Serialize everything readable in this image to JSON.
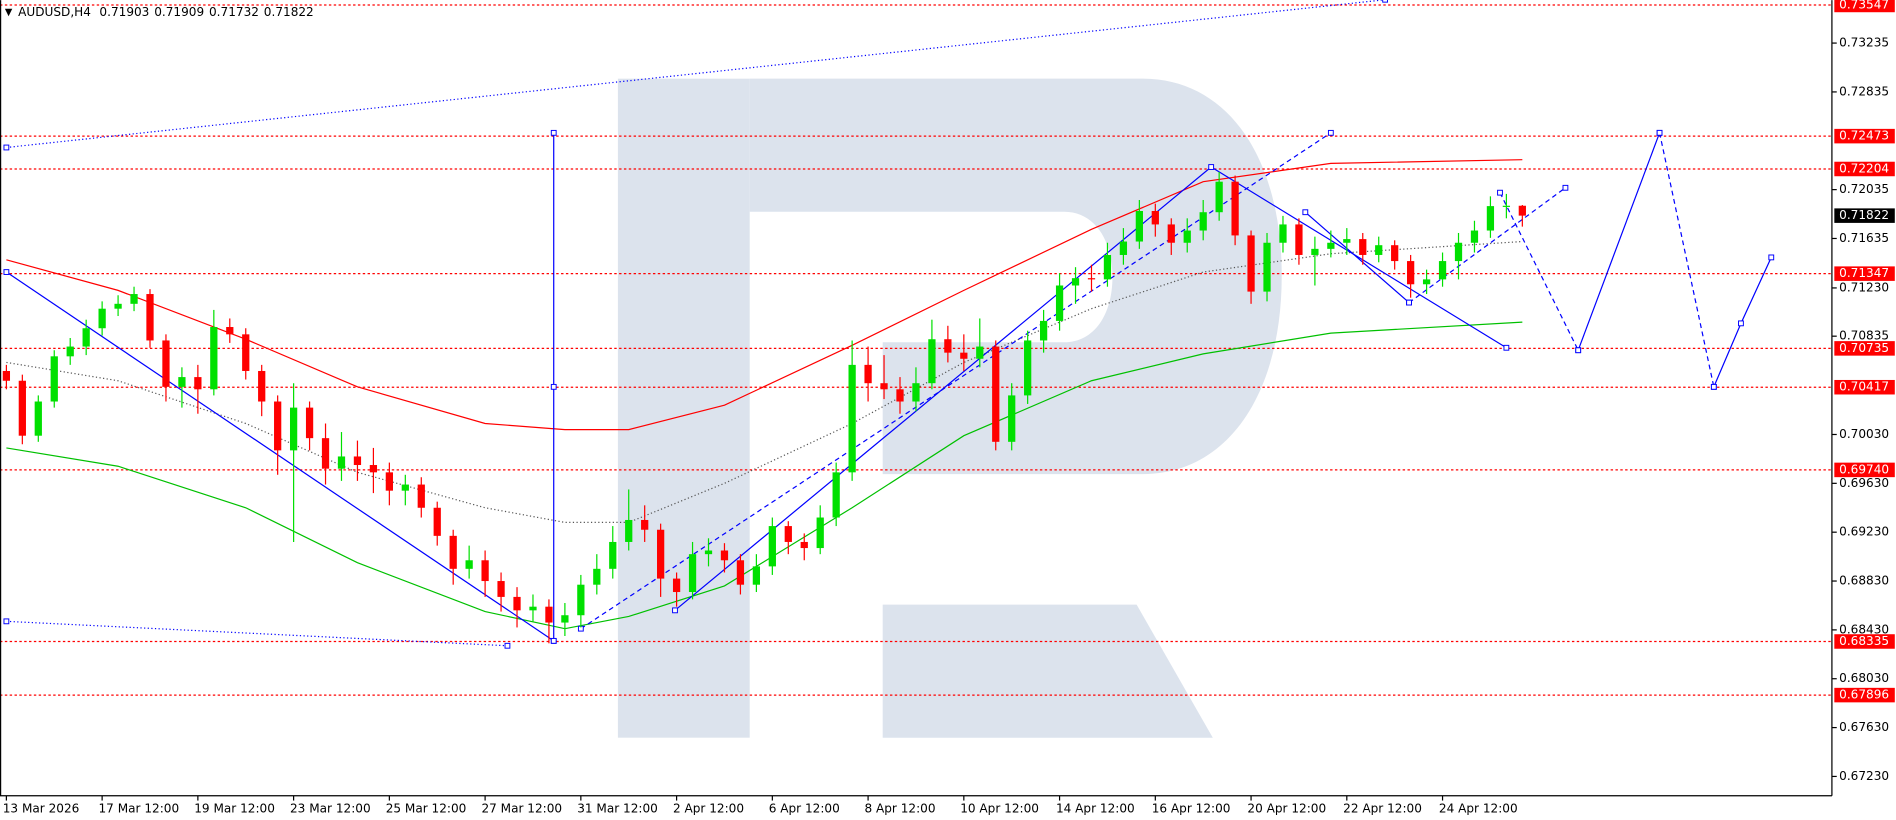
{
  "header": {
    "symbol": "AUDUSD,H4"
  },
  "chart_data": {
    "type": "candlestick",
    "colors": {
      "up": "#00e000",
      "down": "#ff0000",
      "level": "#ff0000",
      "drawing": "#0000ff",
      "current": "#000000"
    },
    "xlim": [
      -0.4,
      114.4
    ],
    "ylim": [
      0.67072,
      0.73587
    ],
    "xticks": [
      {
        "value": 0,
        "label": "13 Mar 2026"
      },
      {
        "value": 6,
        "label": "17 Mar 12:00"
      },
      {
        "value": 12,
        "label": "19 Mar 12:00"
      },
      {
        "value": 18,
        "label": "23 Mar 12:00"
      },
      {
        "value": 24,
        "label": "25 Mar 12:00"
      },
      {
        "value": 30,
        "label": "27 Mar 12:00"
      },
      {
        "value": 36,
        "label": "31 Mar 12:00"
      },
      {
        "value": 42,
        "label": "2 Apr 12:00"
      },
      {
        "value": 48,
        "label": "6 Apr 12:00"
      },
      {
        "value": 54,
        "label": "8 Apr 12:00"
      },
      {
        "value": 60,
        "label": "10 Apr 12:00"
      },
      {
        "value": 66,
        "label": "14 Apr 12:00"
      },
      {
        "value": 72,
        "label": "16 Apr 12:00"
      },
      {
        "value": 78,
        "label": "20 Apr 12:00"
      },
      {
        "value": 84,
        "label": "22 Apr 12:00"
      },
      {
        "value": 90,
        "label": "24 Apr 12:00"
      }
    ],
    "yticks": [
      0.73235,
      0.72835,
      0.72035,
      0.71635,
      {
        "value": 0.7123,
        "label": "0.71230"
      },
      0.70835,
      {
        "value": 0.7003,
        "label": "0.70030"
      },
      {
        "value": 0.6963,
        "label": "0.69630"
      },
      {
        "value": 0.6923,
        "label": "0.69230"
      },
      {
        "value": 0.6883,
        "label": "0.68830"
      },
      {
        "value": 0.6843,
        "label": "0.68430"
      },
      {
        "value": 0.6803,
        "label": "0.68030"
      },
      {
        "value": 0.6763,
        "label": "0.67630"
      },
      {
        "value": 0.6723,
        "label": "0.67230"
      }
    ],
    "levels": [
      0.73547,
      0.72473,
      0.72204,
      0.71347,
      0.70735,
      0.70417,
      {
        "value": 0.6974,
        "label": "0.69740"
      },
      0.68335,
      0.67896
    ],
    "candles": [
      [
        0.7055,
        0.706,
        0.704,
        0.7047
      ],
      [
        0.7047,
        0.7052,
        0.6995,
        0.7002
      ],
      [
        0.7002,
        0.7035,
        0.6997,
        0.703
      ],
      [
        0.703,
        0.7072,
        0.7025,
        0.7067
      ],
      [
        0.7067,
        0.7082,
        0.706,
        0.7075
      ],
      [
        0.7075,
        0.7097,
        0.7068,
        0.709
      ],
      [
        0.709,
        0.7112,
        0.7084,
        0.7106
      ],
      [
        0.7106,
        0.7117,
        0.71,
        0.711
      ],
      [
        0.711,
        0.7124,
        0.7104,
        0.7118
      ],
      [
        0.7118,
        0.7122,
        0.7074,
        0.708
      ],
      [
        0.708,
        0.7085,
        0.703,
        0.7042
      ],
      [
        0.7042,
        0.7058,
        0.7025,
        0.705
      ],
      [
        0.705,
        0.706,
        0.702,
        0.704
      ],
      [
        0.704,
        0.7105,
        0.7035,
        0.7091
      ],
      [
        0.7091,
        0.7098,
        0.7078,
        0.7085
      ],
      [
        0.7085,
        0.709,
        0.7048,
        0.7055
      ],
      [
        0.7055,
        0.706,
        0.7018,
        0.703
      ],
      [
        0.703,
        0.7035,
        0.697,
        0.699
      ],
      [
        0.699,
        0.7045,
        0.6915,
        0.7025
      ],
      [
        0.7025,
        0.703,
        0.699,
        0.7
      ],
      [
        0.7,
        0.7012,
        0.6962,
        0.6975
      ],
      [
        0.6975,
        0.7005,
        0.6965,
        0.6985
      ],
      [
        0.6985,
        0.6998,
        0.6965,
        0.6978
      ],
      [
        0.6978,
        0.6992,
        0.6955,
        0.6972
      ],
      [
        0.6972,
        0.698,
        0.6945,
        0.6957
      ],
      [
        0.6957,
        0.697,
        0.6945,
        0.6962
      ],
      [
        0.6962,
        0.6968,
        0.6935,
        0.6943
      ],
      [
        0.6943,
        0.6948,
        0.6912,
        0.692
      ],
      [
        0.692,
        0.6925,
        0.688,
        0.6893
      ],
      [
        0.6893,
        0.6912,
        0.6885,
        0.69
      ],
      [
        0.69,
        0.6908,
        0.687,
        0.6883
      ],
      [
        0.6883,
        0.689,
        0.6858,
        0.687
      ],
      [
        0.687,
        0.6878,
        0.6845,
        0.6859
      ],
      [
        0.6859,
        0.6872,
        0.685,
        0.6862
      ],
      [
        0.6862,
        0.6868,
        0.6832,
        0.6849
      ],
      [
        0.6849,
        0.6865,
        0.6838,
        0.6855
      ],
      [
        0.6855,
        0.6888,
        0.6845,
        0.688
      ],
      [
        0.688,
        0.6905,
        0.6872,
        0.6893
      ],
      [
        0.6893,
        0.6928,
        0.6885,
        0.6915
      ],
      [
        0.6915,
        0.6958,
        0.6908,
        0.6933
      ],
      [
        0.6933,
        0.6945,
        0.6915,
        0.6925
      ],
      [
        0.6925,
        0.693,
        0.687,
        0.6885
      ],
      [
        0.6885,
        0.689,
        0.6862,
        0.6874
      ],
      [
        0.6874,
        0.6915,
        0.6868,
        0.6905
      ],
      [
        0.6905,
        0.6918,
        0.6895,
        0.6908
      ],
      [
        0.6908,
        0.6914,
        0.689,
        0.69
      ],
      [
        0.69,
        0.6905,
        0.6872,
        0.688
      ],
      [
        0.688,
        0.6905,
        0.6874,
        0.6895
      ],
      [
        0.6895,
        0.6935,
        0.6888,
        0.6928
      ],
      [
        0.6928,
        0.6932,
        0.6905,
        0.6915
      ],
      [
        0.6915,
        0.6922,
        0.69,
        0.691
      ],
      [
        0.691,
        0.6945,
        0.6905,
        0.6935
      ],
      [
        0.6935,
        0.698,
        0.6928,
        0.6972
      ],
      [
        0.6972,
        0.708,
        0.6965,
        0.706
      ],
      [
        0.706,
        0.7075,
        0.703,
        0.7045
      ],
      [
        0.7045,
        0.7068,
        0.7032,
        0.704
      ],
      [
        0.704,
        0.705,
        0.702,
        0.703
      ],
      [
        0.703,
        0.7058,
        0.7022,
        0.7045
      ],
      [
        0.7045,
        0.7097,
        0.704,
        0.7081
      ],
      [
        0.7081,
        0.7092,
        0.7062,
        0.707
      ],
      [
        0.707,
        0.7085,
        0.7055,
        0.7065
      ],
      [
        0.7065,
        0.7098,
        0.7058,
        0.7075
      ],
      [
        0.7075,
        0.708,
        0.699,
        0.6997
      ],
      [
        0.6997,
        0.7045,
        0.699,
        0.7035
      ],
      [
        0.7035,
        0.7088,
        0.7028,
        0.708
      ],
      [
        0.708,
        0.7105,
        0.707,
        0.7096
      ],
      [
        0.7096,
        0.7135,
        0.7088,
        0.7125
      ],
      [
        0.7125,
        0.714,
        0.711,
        0.7131
      ],
      [
        0.7131,
        0.7142,
        0.712,
        0.713
      ],
      [
        0.713,
        0.716,
        0.7124,
        0.715
      ],
      [
        0.715,
        0.7172,
        0.7142,
        0.7161
      ],
      [
        0.7161,
        0.7195,
        0.7155,
        0.7186
      ],
      [
        0.7186,
        0.7192,
        0.7165,
        0.7175
      ],
      [
        0.7175,
        0.718,
        0.715,
        0.716
      ],
      [
        0.716,
        0.718,
        0.7152,
        0.717
      ],
      [
        0.717,
        0.7195,
        0.7162,
        0.7185
      ],
      [
        0.7185,
        0.7218,
        0.7178,
        0.721
      ],
      [
        0.721,
        0.7215,
        0.7158,
        0.7166
      ],
      [
        0.7166,
        0.717,
        0.711,
        0.712
      ],
      [
        0.712,
        0.7168,
        0.7112,
        0.716
      ],
      [
        0.716,
        0.7182,
        0.7152,
        0.7175
      ],
      [
        0.7175,
        0.718,
        0.7142,
        0.715
      ],
      [
        0.715,
        0.7165,
        0.7125,
        0.7155
      ],
      [
        0.7155,
        0.717,
        0.7148,
        0.716
      ],
      [
        0.716,
        0.7172,
        0.715,
        0.7163
      ],
      [
        0.7163,
        0.7168,
        0.7142,
        0.715
      ],
      [
        0.715,
        0.7165,
        0.7144,
        0.7158
      ],
      [
        0.7158,
        0.7162,
        0.7138,
        0.7145
      ],
      [
        0.7145,
        0.715,
        0.7115,
        0.7126
      ],
      [
        0.7126,
        0.7138,
        0.7118,
        0.713
      ],
      [
        0.713,
        0.7152,
        0.7124,
        0.7145
      ],
      [
        0.7145,
        0.7168,
        0.713,
        0.716
      ],
      [
        0.716,
        0.7178,
        0.7152,
        0.717
      ],
      [
        0.717,
        0.7198,
        0.7164,
        0.719
      ],
      [
        0.719,
        0.72,
        0.718,
        0.71903
      ],
      [
        0.71903,
        0.71909,
        0.71732,
        0.71822
      ]
    ],
    "moving_averages": [
      {
        "color": "#ff0000",
        "style": "solid",
        "x": [
          0,
          7,
          15,
          22,
          30,
          35,
          39,
          45,
          53,
          60,
          68,
          75,
          83,
          95
        ],
        "values": [
          0.7146,
          0.7121,
          0.7081,
          0.7042,
          0.7012,
          0.7007,
          0.7007,
          0.7027,
          0.7076,
          0.7121,
          0.7171,
          0.721,
          0.7225,
          0.7228
        ]
      },
      {
        "color": "#00c000",
        "style": "solid",
        "x": [
          0,
          7,
          15,
          22,
          30,
          35,
          39,
          45,
          53,
          60,
          68,
          75,
          83,
          95
        ],
        "values": [
          0.6992,
          0.6977,
          0.6943,
          0.6898,
          0.6858,
          0.6844,
          0.6854,
          0.6879,
          0.6943,
          0.7002,
          0.7047,
          0.7069,
          0.7086,
          0.7095
        ]
      },
      {
        "color": "#555555",
        "style": "dotted",
        "x": [
          0,
          7,
          15,
          22,
          30,
          35,
          39,
          45,
          53,
          60,
          68,
          75,
          83,
          95
        ],
        "values": [
          0.7062,
          0.7047,
          0.7012,
          0.6972,
          0.6943,
          0.6931,
          0.6931,
          0.6963,
          0.7012,
          0.7062,
          0.7106,
          0.7136,
          0.7151,
          0.7161
        ]
      }
    ],
    "drawings": [
      {
        "style": "solid",
        "x": [
          0,
          34.3
        ],
        "y": [
          0.7136,
          0.6834
        ]
      },
      {
        "style": "solid",
        "x": [
          34.3,
          34.3,
          34.3
        ],
        "y": [
          0.6834,
          0.7042,
          0.725
        ]
      },
      {
        "style": "dotted",
        "x": [
          0,
          86.4
        ],
        "y": [
          0.7238,
          0.7359
        ]
      },
      {
        "style": "dotted",
        "x": [
          0,
          31.4
        ],
        "y": [
          0.685,
          0.683
        ]
      },
      {
        "style": "solid",
        "x": [
          41.9,
          75.5,
          94
        ],
        "y": [
          0.6859,
          0.7222,
          0.7074
        ]
      },
      {
        "style": "dashed",
        "x": [
          36,
          83
        ],
        "y": [
          0.6844,
          0.725
        ]
      },
      {
        "style": "solid",
        "x": [
          81.4,
          87.9
        ],
        "y": [
          0.7185,
          0.7111
        ]
      },
      {
        "style": "dashed",
        "x": [
          87.9,
          97.7
        ],
        "y": [
          0.7111,
          0.7205
        ]
      },
      {
        "style": "dashed",
        "x": [
          93.6,
          98.5
        ],
        "y": [
          0.7201,
          0.7072
        ]
      },
      {
        "style": "solid",
        "x": [
          98.5,
          103.6
        ],
        "y": [
          0.7072,
          0.725
        ]
      },
      {
        "style": "dashed",
        "x": [
          103.6,
          107
        ],
        "y": [
          0.725,
          0.7042
        ]
      },
      {
        "style": "solid",
        "x": [
          107,
          108.7,
          110.6
        ],
        "y": [
          0.7042,
          0.7094,
          0.7148
        ]
      }
    ]
  }
}
